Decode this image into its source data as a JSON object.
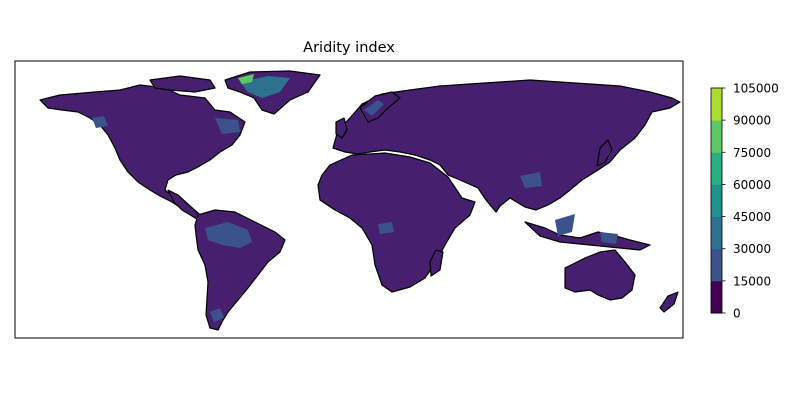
{
  "title": "Aridity index",
  "colorbar": {
    "ticks": [
      "0",
      "15000",
      "30000",
      "45000",
      "60000",
      "75000",
      "90000",
      "105000"
    ],
    "levels": [
      0,
      15000,
      30000,
      45000,
      60000,
      75000,
      90000,
      105000
    ],
    "colors": [
      "#440154",
      "#3b528b",
      "#2c728e",
      "#21918c",
      "#28ae80",
      "#5ec962",
      "#addc30",
      "#fde725"
    ]
  },
  "map": {
    "projection": "PlateCarree",
    "land_color": "#46206e",
    "ocean_color": "#ffffff",
    "coastline_color": "#000000"
  }
}
